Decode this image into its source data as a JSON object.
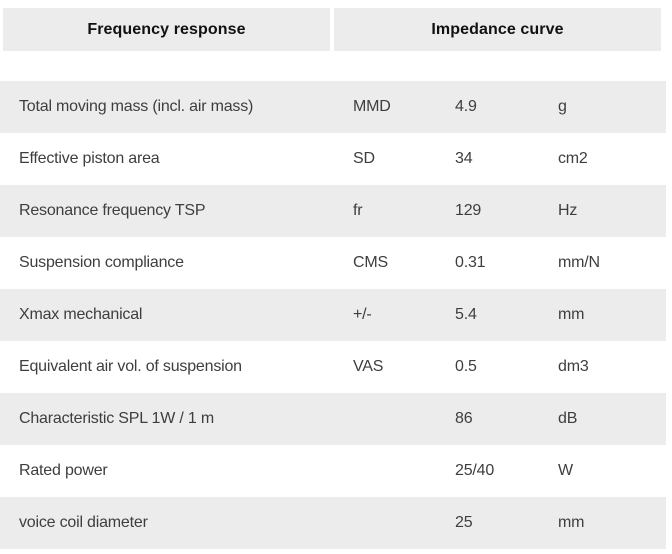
{
  "tabs": [
    {
      "label": "Frequency response"
    },
    {
      "label": "Impedance curve"
    }
  ],
  "table": {
    "rows": [
      {
        "label": "Total moving mass (incl. air mass)",
        "symbol": "MMD",
        "value": "4.9",
        "unit": "g"
      },
      {
        "label": "Effective piston area",
        "symbol": "SD",
        "value": "34",
        "unit": "cm2"
      },
      {
        "label": "Resonance frequency TSP",
        "symbol": "fr",
        "value": "129",
        "unit": "Hz"
      },
      {
        "label": "Suspension compliance",
        "symbol": "CMS",
        "value": "0.31",
        "unit": "mm/N"
      },
      {
        "label": "Xmax mechanical",
        "symbol": "+/-",
        "value": "5.4",
        "unit": "mm"
      },
      {
        "label": "Equivalent air vol. of suspension",
        "symbol": "VAS",
        "value": "0.5",
        "unit": "dm3"
      },
      {
        "label": "Characteristic SPL 1W / 1 m",
        "symbol": "",
        "value": "86",
        "unit": "dB"
      },
      {
        "label": "Rated power",
        "symbol": "",
        "value": "25/40",
        "unit": "W"
      },
      {
        "label": "voice coil diameter",
        "symbol": "",
        "value": "25",
        "unit": "mm"
      }
    ]
  },
  "colors": {
    "panel_gray": "#ececec",
    "row_text": "#3e3e3e",
    "tab_text": "#111111"
  }
}
